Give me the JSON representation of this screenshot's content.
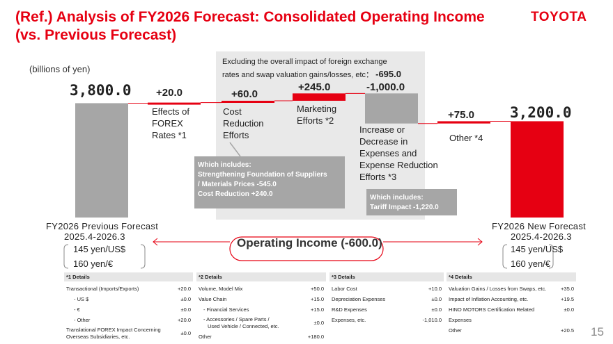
{
  "header": {
    "title_line1": "(Ref.) Analysis of FY2026 Forecast: Consolidated Operating Income",
    "title_line2": "(vs. Previous Forecast)",
    "logo": "TOYOTA",
    "unit": "(billions of yen)"
  },
  "note": {
    "line1": "Excluding the overall impact of foreign exchange",
    "line2": "rates and swap valuation gains/losses, etc：",
    "value": "-695.0"
  },
  "chart_data": {
    "type": "bar",
    "subtype": "waterfall",
    "categories": [
      "FY2026 Previous Forecast",
      "Effects of FOREX Rates *1",
      "Cost Reduction Efforts",
      "Marketing Efforts *2",
      "Increase or Decrease in Expenses and Expense Reduction Efforts *3",
      "Other *4",
      "FY2026 New Forecast"
    ],
    "values": [
      3800.0,
      20.0,
      60.0,
      245.0,
      -1000.0,
      75.0,
      3200.0
    ],
    "value_labels": [
      "3,800.0",
      "+20.0",
      "+60.0",
      "+245.0",
      "-1,000.0",
      "+75.0",
      "3,200.0"
    ],
    "colors": {
      "total_prev": "#a6a6a6",
      "increase": "#e60012",
      "decrease": "#a6a6a6",
      "total_new": "#e60012",
      "connector": "#e60012"
    }
  },
  "labels": {
    "forex": [
      "Effects of",
      "FOREX",
      "Rates *1"
    ],
    "cost": [
      "Cost",
      "Reduction",
      "Efforts"
    ],
    "marketing": [
      "Marketing",
      "Efforts *2"
    ],
    "expenses": [
      "Increase or",
      "Decrease in",
      "Expenses and",
      "Expense Reduction",
      "Efforts *3"
    ],
    "other": "Other *4"
  },
  "callouts": {
    "cost": {
      "line1": "Which includes:",
      "line2": "Strengthening Foundation of Suppliers",
      "line3": "/ Materials Prices   -545.0",
      "line4": "Cost Reduction   +240.0"
    },
    "expenses": {
      "line1": "Which includes:",
      "line2": "Tariff Impact -1,220.0"
    }
  },
  "footer": {
    "prev_name": "FY2026 Previous Forecast",
    "prev_period": "2025.4-2026.3",
    "new_name": "FY2026 New Forecast",
    "new_period": "2025.4-2026.3",
    "operating_income": "Operating Income (-600.0)",
    "prev_rate_usd": "145 yen/US$",
    "prev_rate_eur": "160 yen/€",
    "new_rate_usd": "145 yen/US$",
    "new_rate_eur": "160 yen/€"
  },
  "details": {
    "d1": {
      "header": "*1 Details",
      "rows": [
        {
          "label": "Transactional (Imports/Exports)",
          "value": "+20.0"
        },
        {
          "label": "- US $",
          "value": "±0.0"
        },
        {
          "label": "- €",
          "value": "±0.0"
        },
        {
          "label": "- Other",
          "value": "+20.0"
        }
      ],
      "tail_line1": "Translational FOREX Impact Concerning",
      "tail_line2": "Overseas Subsidiaries, etc.",
      "tail_value": "±0.0"
    },
    "d2": {
      "header": "*2 Details",
      "rows": [
        {
          "label": "Volume, Model Mix",
          "value": "+50.0"
        },
        {
          "label": "Value Chain",
          "value": "+15.0"
        },
        {
          "label": "- Financial Services",
          "value": "+15.0"
        }
      ],
      "acc_line1": "- Accessories / Spare Parts /",
      "acc_line2": "Used Vehicle / Connected, etc.",
      "acc_value": "±0.0",
      "other_label": "Other",
      "other_value": "+180.0"
    },
    "d3": {
      "header": "*3 Details",
      "rows": [
        {
          "label": "Labor Cost",
          "value": "+10.0"
        },
        {
          "label": "Depreciation Expenses",
          "value": "±0.0"
        },
        {
          "label": "R&D Expenses",
          "value": "±0.0"
        },
        {
          "label": "Expenses, etc.",
          "value": "-1,010.0"
        }
      ]
    },
    "d4": {
      "header": "*4 Details",
      "rows": [
        {
          "label": "Valuation Gains / Losses from Swaps, etc.",
          "value": "+35.0"
        },
        {
          "label": "Impact of Inflation Accounting, etc.",
          "value": "+19.5"
        },
        {
          "label": "HINO MOTORS Certification Related",
          "value": "±0.0"
        },
        {
          "label": "Expenses",
          "value": ""
        },
        {
          "label": "Other",
          "value": "+20.5"
        }
      ]
    }
  },
  "page_number": "15"
}
